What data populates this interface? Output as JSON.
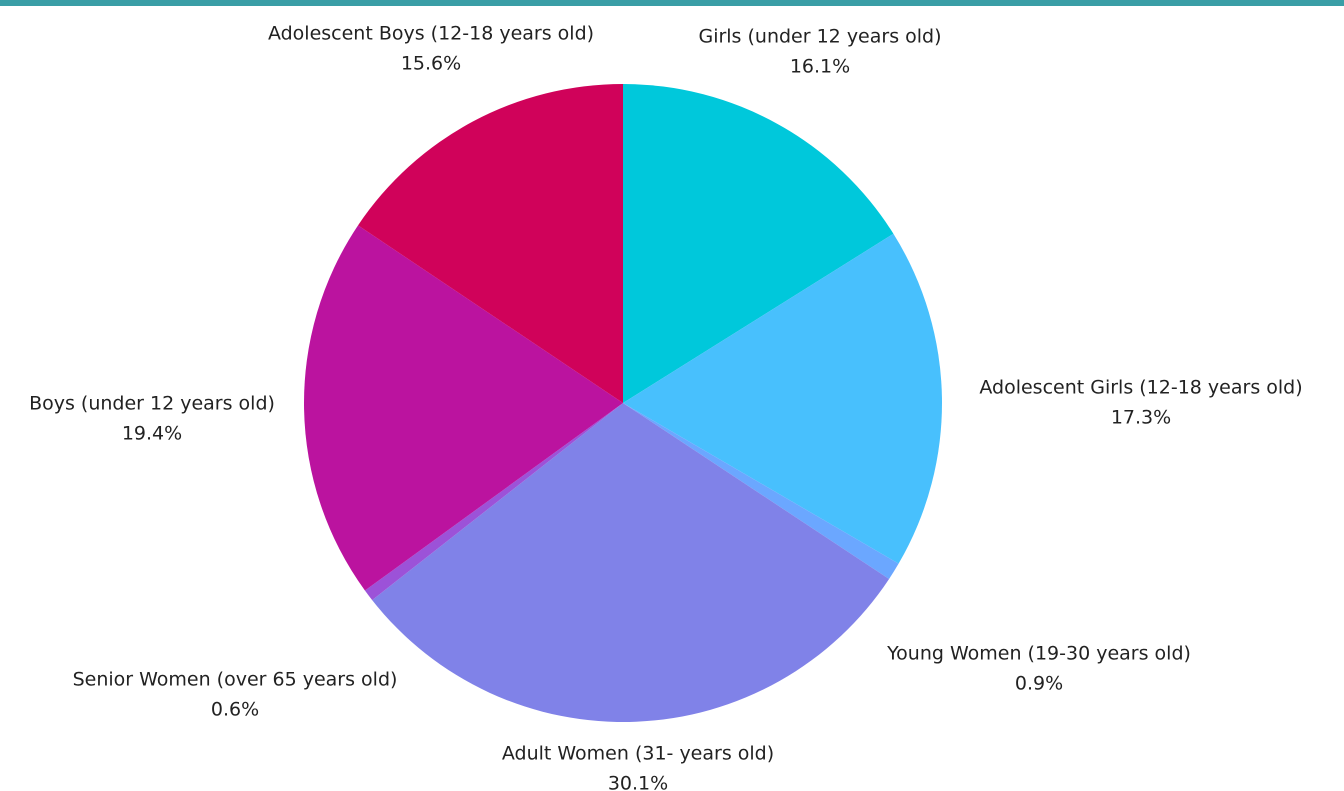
{
  "chart_data": {
    "type": "pie",
    "title": "",
    "slices": [
      {
        "label": "Girls (under 12 years old)",
        "value": 16.1,
        "display": "16.1%",
        "color": "#00c8db"
      },
      {
        "label": "Adolescent Girls (12-18 years old)",
        "value": 17.3,
        "display": "17.3%",
        "color": "#48c0fd"
      },
      {
        "label": "Young Women (19-30 years old)",
        "value": 0.9,
        "display": "0.9%",
        "color": "#6ba7ff"
      },
      {
        "label": "Adult Women (31- years old)",
        "value": 30.1,
        "display": "30.1%",
        "color": "#8082e8"
      },
      {
        "label": "Senior Women (over 65 years old)",
        "value": 0.6,
        "display": "0.6%",
        "color": "#9c52d8"
      },
      {
        "label": "Boys (under 12 years old)",
        "value": 19.4,
        "display": "19.4%",
        "color": "#bb139f"
      },
      {
        "label": "Adolescent Boys (12-18 years old)",
        "value": 15.6,
        "display": "15.6%",
        "color": "#d0025a"
      }
    ],
    "start_angle": "12 o'clock",
    "direction": "clockwise",
    "legend": "none"
  }
}
